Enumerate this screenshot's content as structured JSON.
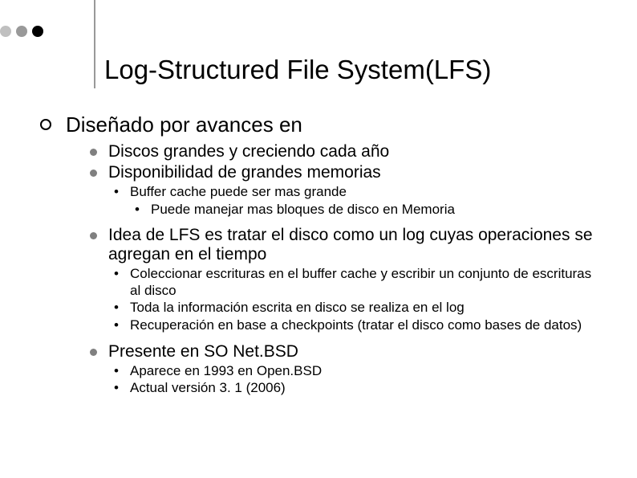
{
  "title": "Log-Structured File System(LFS)",
  "colors": {
    "dot1": "#c0c0c0",
    "dot2": "#999999",
    "dot3": "#000000",
    "vline": "#999999",
    "lvl2_bullet": "#808080",
    "text": "#000000",
    "background": "#ffffff"
  },
  "fonts": {
    "title_size": 33,
    "lvl1_size": 26,
    "lvl2_size": 21,
    "lvl3_size": 17,
    "family": "Arial"
  },
  "lvl1": {
    "text": "Diseñado por avances en"
  },
  "lvl2": {
    "a": "Discos grandes y creciendo cada año",
    "b": "Disponibilidad de grandes memorias",
    "c": "Idea de LFS es tratar el disco como un log cuyas operaciones se agregan en el tiempo",
    "d": "Presente en SO Net.BSD"
  },
  "lvl3": {
    "b1": "Buffer cache puede ser mas grande",
    "c1": "Coleccionar escrituras en el buffer cache y escribir un conjunto de escrituras al disco",
    "c2": "Toda la información escrita en disco se realiza en el log",
    "c3": "Recuperación en base a checkpoints (tratar el disco como bases de datos)",
    "d1": "Aparece en 1993 en Open.BSD",
    "d2": "Actual versión 3. 1 (2006)"
  },
  "lvl4": {
    "b1a": "Puede manejar mas bloques de disco en Memoria"
  }
}
